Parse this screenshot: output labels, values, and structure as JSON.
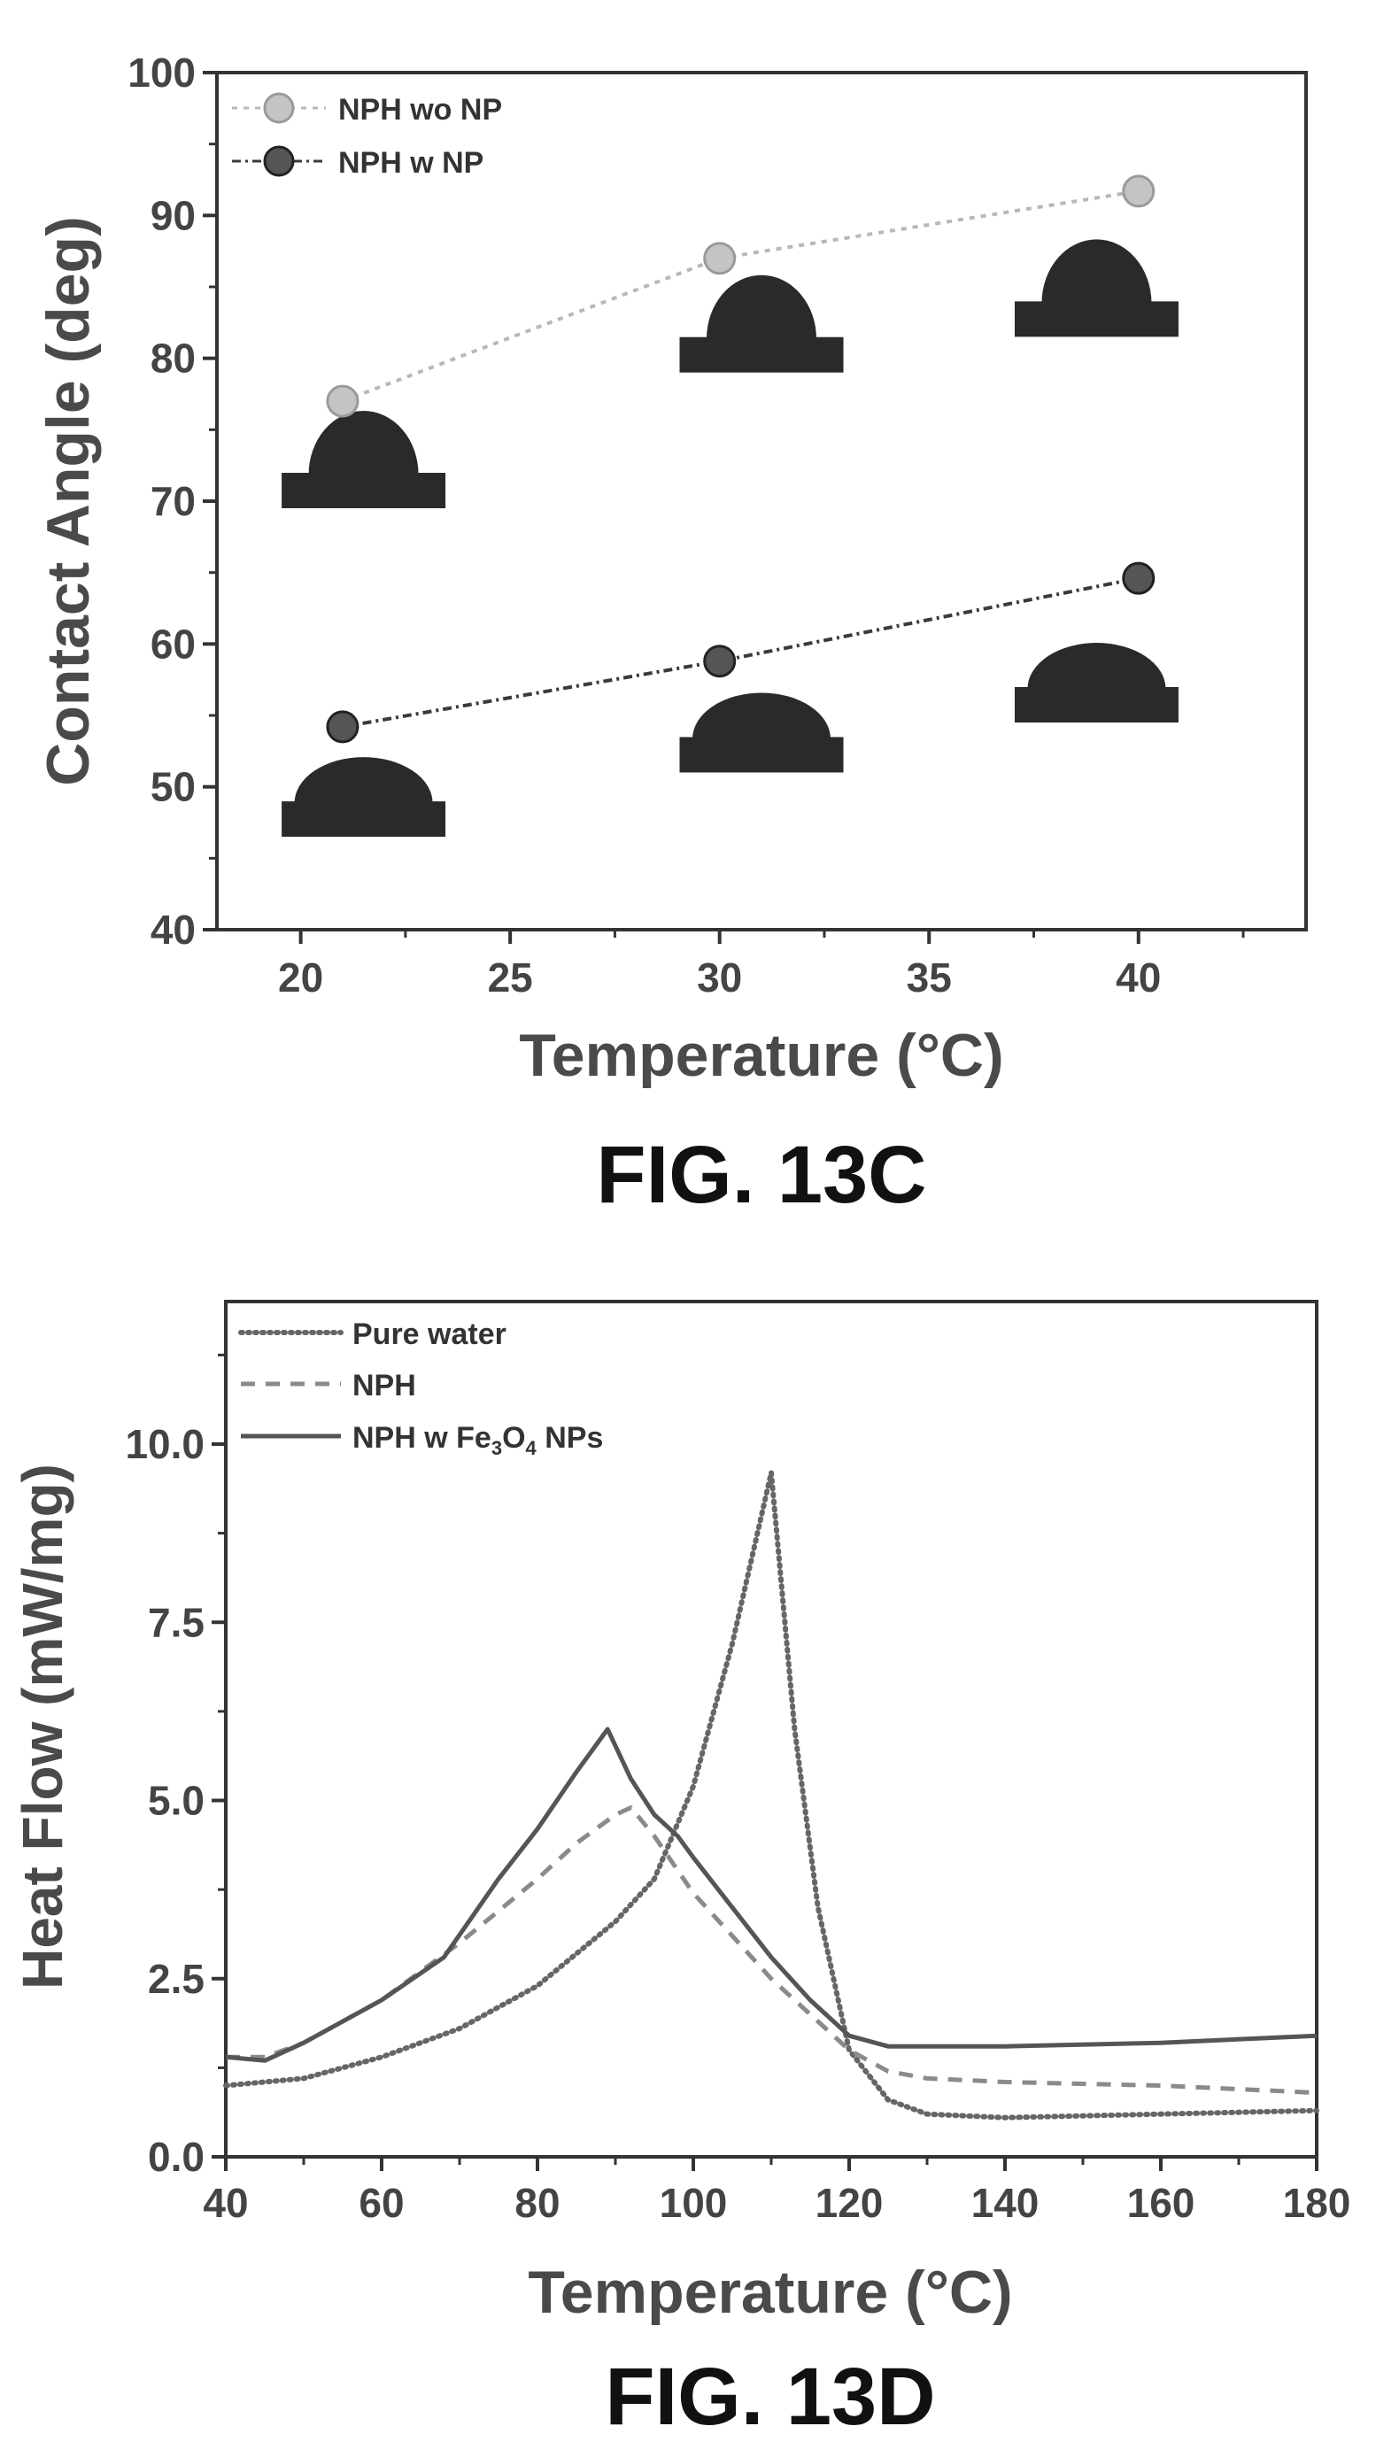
{
  "chart_data": [
    {
      "type": "scatter",
      "caption": "FIG. 13C",
      "xlabel": "Temperature (°C)",
      "ylabel": "Contact Angle (deg)",
      "xlim": [
        18,
        44
      ],
      "ylim": [
        40,
        100
      ],
      "xticks": [
        20,
        25,
        30,
        35,
        40
      ],
      "yticks": [
        40,
        50,
        60,
        70,
        80,
        90,
        100
      ],
      "legend_position": "top-left",
      "grid": false,
      "series": [
        {
          "name": "NPH wo NP",
          "x": [
            21,
            30,
            40
          ],
          "y": [
            77,
            87,
            91.7
          ],
          "color": "#b8b8b8"
        },
        {
          "name": "NPH w NP",
          "x": [
            21,
            30,
            40
          ],
          "y": [
            54.2,
            58.8,
            64.6
          ],
          "color": "#3a3a3a"
        }
      ],
      "droplet_insets": [
        {
          "series": "NPH wo NP",
          "x": 21.5,
          "y": 70
        },
        {
          "series": "NPH wo NP",
          "x": 31,
          "y": 79.5
        },
        {
          "series": "NPH wo NP",
          "x": 39,
          "y": 82
        },
        {
          "series": "NPH w NP",
          "x": 21.5,
          "y": 47
        },
        {
          "series": "NPH w NP",
          "x": 31,
          "y": 51.5
        },
        {
          "series": "NPH w NP",
          "x": 39,
          "y": 55
        }
      ]
    },
    {
      "type": "line",
      "caption": "FIG. 13D",
      "xlabel": "Temperature (°C)",
      "ylabel": "Heat Flow (mW/mg)",
      "xlim": [
        40,
        180
      ],
      "ylim": [
        0,
        12
      ],
      "xticks": [
        40,
        60,
        80,
        100,
        120,
        140,
        160,
        180
      ],
      "yticks": [
        0.0,
        2.5,
        5.0,
        7.5,
        10.0
      ],
      "ytick_labels": [
        "0.0",
        "2.5",
        "5.0",
        "7.5",
        "10.0"
      ],
      "legend_position": "top-left",
      "grid": false,
      "series": [
        {
          "name": "Pure water",
          "style": "dotted",
          "color": "#666666",
          "x": [
            40,
            50,
            60,
            70,
            80,
            90,
            95,
            100,
            105,
            110,
            113,
            116,
            120,
            125,
            130,
            140,
            160,
            180
          ],
          "y": [
            1.0,
            1.1,
            1.4,
            1.8,
            2.4,
            3.3,
            3.9,
            5.2,
            7.2,
            9.6,
            6.0,
            3.5,
            1.5,
            0.8,
            0.6,
            0.55,
            0.6,
            0.65
          ]
        },
        {
          "name": "NPH",
          "style": "dashed",
          "color": "#8a8a8a",
          "x": [
            40,
            45,
            50,
            60,
            70,
            80,
            85,
            90,
            92,
            95,
            100,
            105,
            110,
            115,
            120,
            125,
            130,
            140,
            160,
            180
          ],
          "y": [
            1.4,
            1.4,
            1.6,
            2.2,
            3.0,
            3.9,
            4.4,
            4.8,
            4.9,
            4.5,
            3.7,
            3.1,
            2.5,
            2.0,
            1.5,
            1.2,
            1.1,
            1.05,
            1.0,
            0.9
          ]
        },
        {
          "name": "NPH w Fe3O4 NPs",
          "style": "solid",
          "color": "#555555",
          "x": [
            40,
            45,
            50,
            60,
            68,
            75,
            80,
            85,
            89,
            92,
            95,
            98,
            100,
            105,
            110,
            115,
            120,
            125,
            140,
            160,
            180
          ],
          "y": [
            1.4,
            1.35,
            1.6,
            2.2,
            2.8,
            3.9,
            4.6,
            5.4,
            6.0,
            5.3,
            4.8,
            4.5,
            4.2,
            3.5,
            2.8,
            2.2,
            1.7,
            1.55,
            1.55,
            1.6,
            1.7
          ]
        }
      ]
    }
  ]
}
